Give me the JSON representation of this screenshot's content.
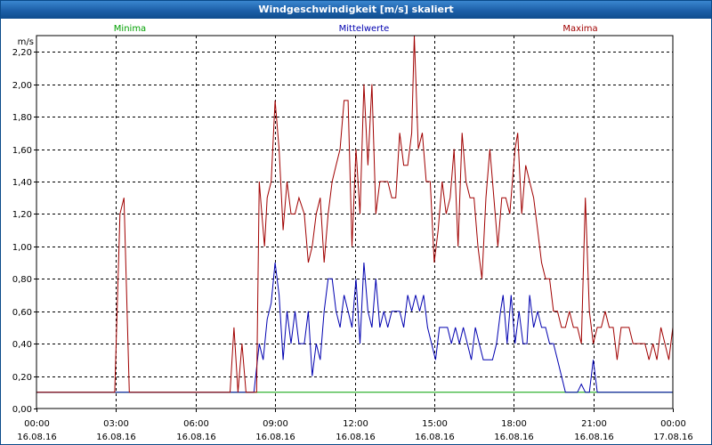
{
  "window": {
    "title": "Windgeschwindigkeit [m/s] skaliert"
  },
  "chart_data": {
    "type": "line",
    "title": "Windgeschwindigkeit [m/s] skaliert",
    "ylabel": "m/s",
    "xlabel": "",
    "xlim_hours": [
      0,
      24
    ],
    "ylim": [
      0,
      2.3
    ],
    "yticks": [
      0,
      0.2,
      0.4,
      0.6,
      0.8,
      1.0,
      1.2,
      1.4,
      1.6,
      1.8,
      2.0,
      2.2
    ],
    "ytick_labels": [
      "0,00",
      "0,20",
      "0,40",
      "0,60",
      "0,80",
      "1,00",
      "1,20",
      "1,40",
      "1,60",
      "1,80",
      "2,00",
      "2,20"
    ],
    "xticks": [
      {
        "t": "00:00",
        "d": "16.08.16"
      },
      {
        "t": "03:00",
        "d": "16.08.16"
      },
      {
        "t": "06:00",
        "d": "16.08.16"
      },
      {
        "t": "09:00",
        "d": "16.08.16"
      },
      {
        "t": "12:00",
        "d": "16.08.16"
      },
      {
        "t": "15:00",
        "d": "16.08.16"
      },
      {
        "t": "18:00",
        "d": "16.08.16"
      },
      {
        "t": "21:00",
        "d": "16.08.16"
      },
      {
        "t": "00:00",
        "d": "17.08.16"
      }
    ],
    "grid": true,
    "legend_position": "top",
    "series": [
      {
        "name": "Minima",
        "color": "#00a000",
        "points": [
          [
            0,
            0.1
          ],
          [
            8.3,
            0.1
          ],
          [
            24,
            0.1
          ]
        ]
      },
      {
        "name": "Mittelwerte",
        "color": "#0000b0",
        "points": [
          [
            0,
            0.1
          ],
          [
            8.2,
            0.1
          ],
          [
            8.3,
            0.25
          ],
          [
            8.4,
            0.4
          ],
          [
            8.55,
            0.3
          ],
          [
            8.7,
            0.55
          ],
          [
            8.85,
            0.65
          ],
          [
            9.0,
            0.9
          ],
          [
            9.15,
            0.7
          ],
          [
            9.3,
            0.3
          ],
          [
            9.45,
            0.6
          ],
          [
            9.6,
            0.4
          ],
          [
            9.75,
            0.6
          ],
          [
            9.9,
            0.4
          ],
          [
            10.1,
            0.4
          ],
          [
            10.25,
            0.6
          ],
          [
            10.4,
            0.2
          ],
          [
            10.55,
            0.4
          ],
          [
            10.7,
            0.3
          ],
          [
            10.85,
            0.6
          ],
          [
            11.0,
            0.8
          ],
          [
            11.15,
            0.8
          ],
          [
            11.3,
            0.6
          ],
          [
            11.45,
            0.5
          ],
          [
            11.6,
            0.7
          ],
          [
            11.75,
            0.6
          ],
          [
            11.9,
            0.5
          ],
          [
            12.05,
            0.8
          ],
          [
            12.2,
            0.4
          ],
          [
            12.35,
            0.9
          ],
          [
            12.5,
            0.6
          ],
          [
            12.65,
            0.5
          ],
          [
            12.8,
            0.8
          ],
          [
            12.95,
            0.5
          ],
          [
            13.1,
            0.6
          ],
          [
            13.25,
            0.5
          ],
          [
            13.4,
            0.6
          ],
          [
            13.55,
            0.6
          ],
          [
            13.7,
            0.6
          ],
          [
            13.85,
            0.5
          ],
          [
            14.0,
            0.7
          ],
          [
            14.15,
            0.6
          ],
          [
            14.3,
            0.7
          ],
          [
            14.45,
            0.6
          ],
          [
            14.6,
            0.7
          ],
          [
            14.75,
            0.5
          ],
          [
            14.9,
            0.4
          ],
          [
            15.05,
            0.3
          ],
          [
            15.2,
            0.5
          ],
          [
            15.35,
            0.5
          ],
          [
            15.5,
            0.5
          ],
          [
            15.65,
            0.4
          ],
          [
            15.8,
            0.5
          ],
          [
            15.95,
            0.4
          ],
          [
            16.1,
            0.5
          ],
          [
            16.25,
            0.4
          ],
          [
            16.4,
            0.3
          ],
          [
            16.55,
            0.5
          ],
          [
            16.7,
            0.4
          ],
          [
            16.85,
            0.3
          ],
          [
            17.0,
            0.3
          ],
          [
            17.2,
            0.3
          ],
          [
            17.35,
            0.4
          ],
          [
            17.5,
            0.6
          ],
          [
            17.6,
            0.7
          ],
          [
            17.75,
            0.4
          ],
          [
            17.9,
            0.7
          ],
          [
            18.05,
            0.4
          ],
          [
            18.2,
            0.6
          ],
          [
            18.35,
            0.4
          ],
          [
            18.5,
            0.4
          ],
          [
            18.6,
            0.7
          ],
          [
            18.75,
            0.5
          ],
          [
            18.9,
            0.6
          ],
          [
            19.05,
            0.5
          ],
          [
            19.2,
            0.5
          ],
          [
            19.35,
            0.4
          ],
          [
            19.5,
            0.4
          ],
          [
            19.65,
            0.3
          ],
          [
            19.8,
            0.2
          ],
          [
            19.95,
            0.1
          ],
          [
            20.1,
            0.1
          ],
          [
            20.25,
            0.1
          ],
          [
            20.4,
            0.1
          ],
          [
            20.55,
            0.15
          ],
          [
            20.7,
            0.1
          ],
          [
            20.85,
            0.1
          ],
          [
            21.0,
            0.3
          ],
          [
            21.15,
            0.1
          ],
          [
            24,
            0.1
          ]
        ]
      },
      {
        "name": "Maxima",
        "color": "#a00000",
        "points": [
          [
            0,
            0.1
          ],
          [
            2.95,
            0.1
          ],
          [
            3.15,
            1.2
          ],
          [
            3.3,
            1.3
          ],
          [
            3.5,
            0.1
          ],
          [
            7.3,
            0.1
          ],
          [
            7.45,
            0.5
          ],
          [
            7.6,
            0.1
          ],
          [
            7.75,
            0.4
          ],
          [
            7.9,
            0.1
          ],
          [
            8.3,
            0.1
          ],
          [
            8.4,
            1.4
          ],
          [
            8.5,
            1.2
          ],
          [
            8.6,
            1.0
          ],
          [
            8.7,
            1.3
          ],
          [
            8.85,
            1.4
          ],
          [
            9.0,
            1.9
          ],
          [
            9.15,
            1.6
          ],
          [
            9.3,
            1.1
          ],
          [
            9.45,
            1.4
          ],
          [
            9.6,
            1.2
          ],
          [
            9.75,
            1.2
          ],
          [
            9.9,
            1.3
          ],
          [
            10.1,
            1.2
          ],
          [
            10.25,
            0.9
          ],
          [
            10.4,
            1.0
          ],
          [
            10.55,
            1.2
          ],
          [
            10.7,
            1.3
          ],
          [
            10.85,
            0.9
          ],
          [
            11.0,
            1.2
          ],
          [
            11.15,
            1.4
          ],
          [
            11.3,
            1.5
          ],
          [
            11.45,
            1.6
          ],
          [
            11.6,
            1.9
          ],
          [
            11.75,
            1.9
          ],
          [
            11.9,
            1.0
          ],
          [
            12.05,
            1.6
          ],
          [
            12.2,
            1.2
          ],
          [
            12.35,
            2.0
          ],
          [
            12.5,
            1.5
          ],
          [
            12.65,
            2.0
          ],
          [
            12.8,
            1.2
          ],
          [
            12.95,
            1.4
          ],
          [
            13.1,
            1.4
          ],
          [
            13.25,
            1.4
          ],
          [
            13.4,
            1.3
          ],
          [
            13.55,
            1.3
          ],
          [
            13.7,
            1.7
          ],
          [
            13.85,
            1.5
          ],
          [
            14.0,
            1.5
          ],
          [
            14.15,
            1.7
          ],
          [
            14.25,
            2.3
          ],
          [
            14.4,
            1.6
          ],
          [
            14.55,
            1.7
          ],
          [
            14.7,
            1.4
          ],
          [
            14.85,
            1.4
          ],
          [
            15.0,
            0.9
          ],
          [
            15.15,
            1.1
          ],
          [
            15.3,
            1.4
          ],
          [
            15.45,
            1.2
          ],
          [
            15.6,
            1.3
          ],
          [
            15.75,
            1.6
          ],
          [
            15.9,
            1.0
          ],
          [
            16.05,
            1.7
          ],
          [
            16.2,
            1.4
          ],
          [
            16.35,
            1.3
          ],
          [
            16.5,
            1.3
          ],
          [
            16.65,
            1.0
          ],
          [
            16.8,
            0.8
          ],
          [
            16.95,
            1.3
          ],
          [
            17.1,
            1.6
          ],
          [
            17.25,
            1.3
          ],
          [
            17.4,
            1.0
          ],
          [
            17.55,
            1.3
          ],
          [
            17.7,
            1.3
          ],
          [
            17.85,
            1.2
          ],
          [
            18.05,
            1.6
          ],
          [
            18.15,
            1.7
          ],
          [
            18.3,
            1.2
          ],
          [
            18.45,
            1.5
          ],
          [
            18.6,
            1.4
          ],
          [
            18.75,
            1.3
          ],
          [
            18.9,
            1.1
          ],
          [
            19.05,
            0.9
          ],
          [
            19.2,
            0.8
          ],
          [
            19.35,
            0.8
          ],
          [
            19.5,
            0.6
          ],
          [
            19.65,
            0.6
          ],
          [
            19.8,
            0.5
          ],
          [
            19.95,
            0.5
          ],
          [
            20.1,
            0.6
          ],
          [
            20.25,
            0.5
          ],
          [
            20.4,
            0.5
          ],
          [
            20.55,
            0.4
          ],
          [
            20.7,
            1.3
          ],
          [
            20.85,
            0.6
          ],
          [
            21.0,
            0.4
          ],
          [
            21.15,
            0.5
          ],
          [
            21.3,
            0.5
          ],
          [
            21.45,
            0.6
          ],
          [
            21.6,
            0.5
          ],
          [
            21.75,
            0.5
          ],
          [
            21.9,
            0.3
          ],
          [
            22.05,
            0.5
          ],
          [
            22.2,
            0.5
          ],
          [
            22.35,
            0.5
          ],
          [
            22.5,
            0.4
          ],
          [
            22.65,
            0.4
          ],
          [
            22.8,
            0.4
          ],
          [
            22.95,
            0.4
          ],
          [
            23.1,
            0.3
          ],
          [
            23.25,
            0.4
          ],
          [
            23.4,
            0.3
          ],
          [
            23.55,
            0.5
          ],
          [
            23.7,
            0.4
          ],
          [
            23.85,
            0.3
          ],
          [
            24.0,
            0.5
          ]
        ]
      }
    ]
  }
}
